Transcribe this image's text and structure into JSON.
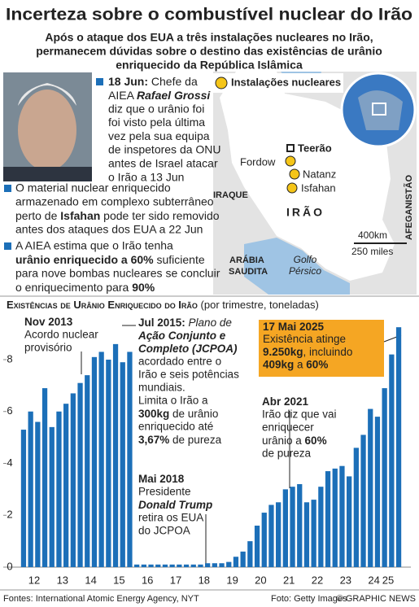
{
  "header": {
    "title": "Incerteza sobre o combustível nuclear do Irão",
    "subtitle": [
      "Após o ataque dos EUA a três instalações nucleares no Irão,",
      "permanecem dúvidas sobre o destino das existências de urânio",
      "enriquecido da República Islâmica"
    ]
  },
  "notes": [
    {
      "lines": [
        [
          {
            "text": "18 Jun:",
            "bold": true
          },
          {
            "text": " Chefe da"
          }
        ],
        [
          {
            "text": "AIEA "
          },
          {
            "text": "Rafael Grossi",
            "bold": true,
            "italic": true
          }
        ],
        "diz que o urânio foi",
        "foi visto pela última",
        "vez pela sua equipa",
        "de inspetores da ONU",
        "antes de Israel atacar",
        "o Irão a 13 Jun"
      ]
    },
    {
      "lines": [
        "O material nuclear enriquecido",
        "armazenado em complexo subterrâneo",
        [
          {
            "text": "perto de "
          },
          {
            "text": "Isfahan",
            "bold": true
          },
          {
            "text": " pode ter sido removido"
          }
        ],
        "antes dos ataques dos EUA a 22 Jun"
      ]
    },
    {
      "lines": [
        "A AIEA estima que o Irão tenha",
        [
          {
            "text": "urânio enriquecido a 60%",
            "bold": true
          },
          {
            "text": " suficiente"
          }
        ],
        "para nove bombas nucleares se concluir",
        [
          {
            "text": "o enriquecimento para "
          },
          {
            "text": "90%",
            "bold": true
          }
        ]
      ]
    }
  ],
  "map": {
    "legend": "Instalações nucleares",
    "sites": [
      "Teerão",
      "Fordow",
      "Natanz",
      "Isfahan"
    ],
    "regions": [
      "IRAQUE",
      "IRÃO",
      "AFEGANISTÃO",
      "ARÁBIA",
      "SAUDITA"
    ],
    "sea": [
      "Golfo",
      "Pérsico"
    ],
    "scale": [
      "400km",
      "250 miles"
    ]
  },
  "footer": {
    "left": "Fontes: International Atomic Energy Agency, NYT",
    "middle": "Foto: Getty Images",
    "right": "© GRAPHIC NEWS"
  },
  "chart_data": {
    "type": "bar",
    "title": "Existências de Urânio Enriquecido do Irão",
    "subtitle": "(por trimestre, toneladas)",
    "color": "#1c6fb8",
    "x": [
      12.125,
      12.375,
      12.625,
      12.875,
      13.125,
      13.375,
      13.625,
      13.875,
      14.125,
      14.375,
      14.625,
      14.875,
      15.125,
      15.375,
      15.625,
      15.875,
      16.125,
      16.375,
      16.625,
      16.875,
      17.125,
      17.375,
      17.625,
      17.875,
      18.125,
      18.375,
      18.625,
      18.875,
      19.125,
      19.375,
      19.625,
      19.875,
      20.125,
      20.375,
      20.625,
      20.875,
      21.125,
      21.375,
      21.625,
      21.875,
      22.125,
      22.375,
      22.625,
      22.875,
      23.125,
      23.375,
      23.625,
      23.875,
      24.125,
      24.375,
      24.625,
      24.875,
      25.125,
      25.375
    ],
    "values": [
      5.3,
      6.0,
      5.6,
      6.9,
      5.4,
      6.0,
      6.3,
      6.7,
      7.1,
      7.4,
      8.1,
      8.3,
      8.0,
      8.6,
      7.9,
      8.3,
      0.1,
      0.1,
      0.1,
      0.1,
      0.1,
      0.1,
      0.1,
      0.1,
      0.1,
      0.1,
      0.15,
      0.15,
      0.15,
      0.2,
      0.4,
      0.6,
      1.0,
      1.6,
      2.1,
      2.4,
      2.5,
      3.0,
      3.1,
      3.2,
      2.5,
      2.6,
      3.1,
      3.7,
      3.8,
      3.9,
      3.5,
      4.6,
      5.1,
      6.1,
      5.8,
      6.9,
      8.2,
      9.25
    ],
    "xlim": [
      12,
      25.5
    ],
    "ylim": [
      0,
      9.6
    ],
    "yticks": [
      0,
      2,
      4,
      6,
      8
    ],
    "xticks": [
      {
        "value": 12.5,
        "label": "12"
      },
      {
        "value": 13.5,
        "label": "13"
      },
      {
        "value": 14.5,
        "label": "14"
      },
      {
        "value": 15.5,
        "label": "15"
      },
      {
        "value": 16.5,
        "label": "16"
      },
      {
        "value": 17.5,
        "label": "17"
      },
      {
        "value": 18.5,
        "label": "18"
      },
      {
        "value": 19.5,
        "label": "19"
      },
      {
        "value": 20.5,
        "label": "20"
      },
      {
        "value": 21.5,
        "label": "21"
      },
      {
        "value": 22.5,
        "label": "22"
      },
      {
        "value": 23.5,
        "label": "23"
      },
      {
        "value": 24.5,
        "label": "24"
      },
      {
        "value": 25.5,
        "label": "25"
      }
    ],
    "annotations": [
      {
        "lines": [
          [
            {
              "text": "Nov 2013",
              "bold": true
            }
          ],
          "Acordo nuclear",
          "provisório"
        ]
      },
      {
        "lines": [
          [
            {
              "text": "Jul 2015:",
              "bold": true
            },
            {
              "text": " Plano de",
              "italic": true
            }
          ],
          [
            {
              "text": "Ação Conjunto e",
              "bold": true,
              "italic": true
            }
          ],
          [
            {
              "text": "Completo (JCPOA)",
              "bold": true,
              "italic": true
            }
          ],
          "acordado entre o",
          "Irão e seis potências",
          "mundiais.",
          "Limita o Irão a",
          [
            {
              "text": "300kg",
              "bold": true
            },
            {
              "text": " de urânio"
            }
          ],
          "enriquecido até",
          [
            {
              "text": "3,67%",
              "bold": true
            },
            {
              "text": " de pureza"
            }
          ]
        ]
      },
      {
        "lines": [
          [
            {
              "text": "Mai 2018",
              "bold": true
            }
          ],
          "Presidente",
          [
            {
              "text": "Donald Trump",
              "bold": true,
              "italic": true
            }
          ],
          "retira os EUA",
          "do JCPOA"
        ]
      },
      {
        "lines": [
          [
            {
              "text": "Abr 2021",
              "bold": true
            }
          ],
          "Irão diz que vai",
          "enriquecer",
          [
            {
              "text": "urânio a "
            },
            {
              "text": "60%",
              "bold": true
            }
          ],
          "de pureza"
        ]
      },
      {
        "lines": [
          [
            {
              "text": "17 Mai 2025",
              "bold": true
            }
          ],
          "Existência atinge",
          [
            {
              "text": "9.250kg",
              "bold": true
            },
            {
              "text": ", incluindo"
            }
          ],
          [
            {
              "text": "409kg",
              "bold": true
            },
            {
              "text": " a "
            },
            {
              "text": "60%",
              "bold": true
            }
          ]
        ]
      }
    ]
  }
}
